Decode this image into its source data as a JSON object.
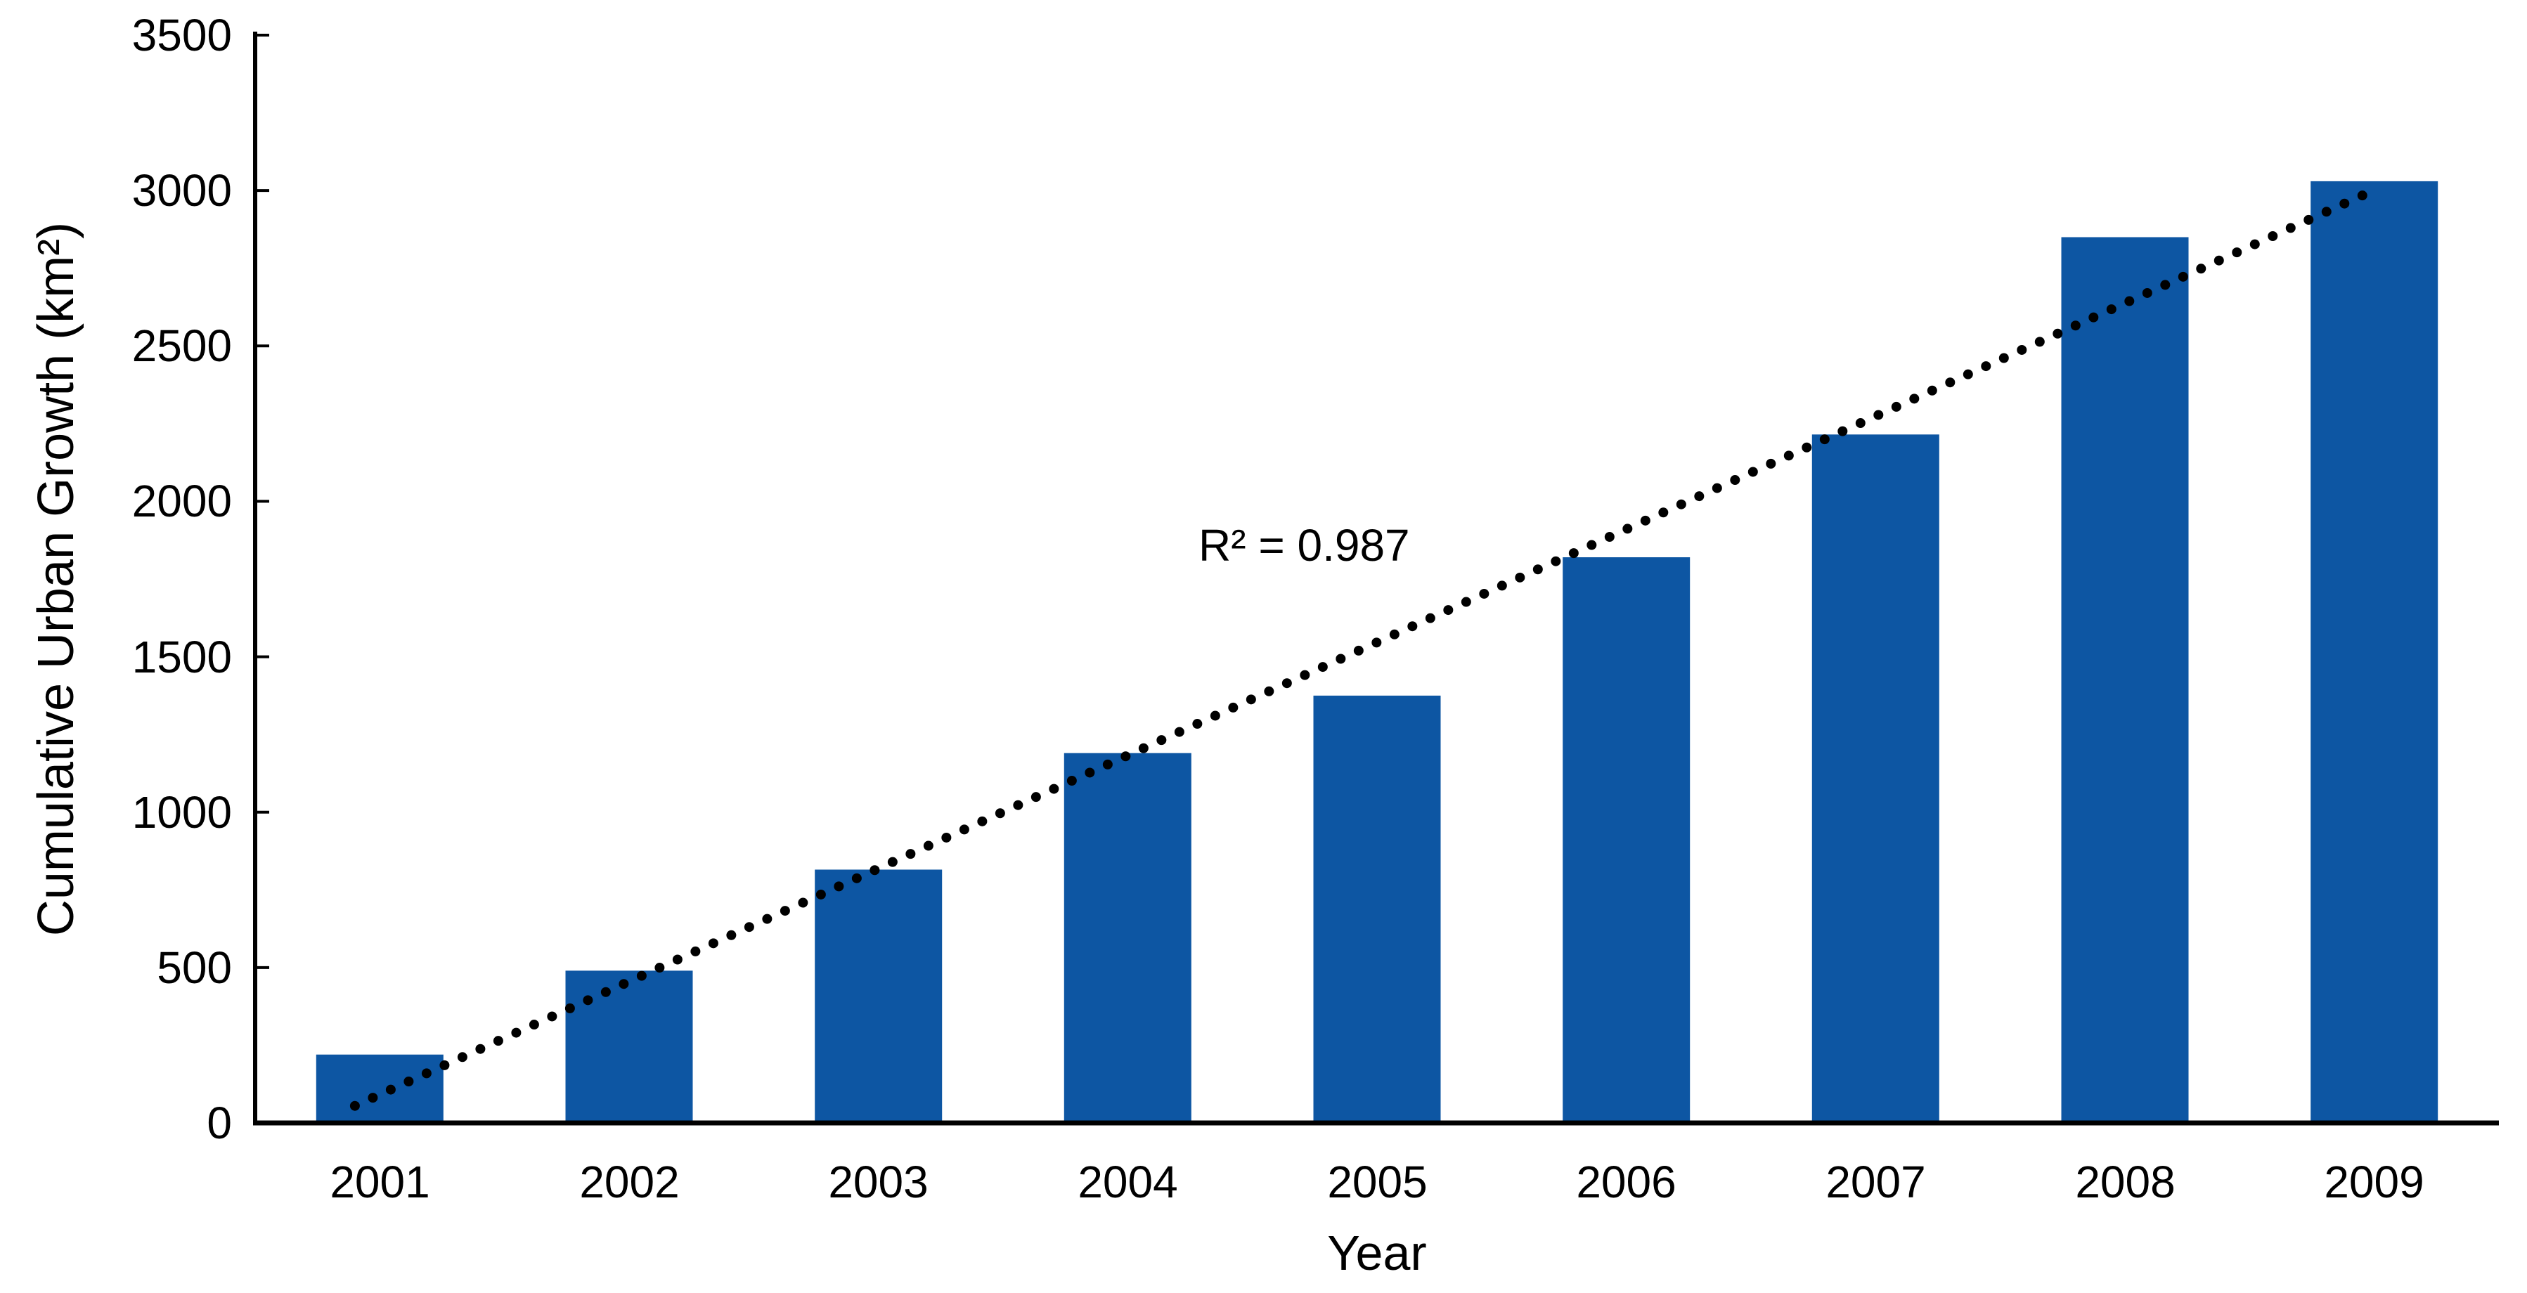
{
  "chart_data": {
    "type": "bar",
    "title": "",
    "categories": [
      "2001",
      "2002",
      "2003",
      "2004",
      "2005",
      "2006",
      "2007",
      "2008",
      "2009"
    ],
    "values": [
      220,
      490,
      815,
      1190,
      1375,
      1820,
      2215,
      2850,
      3030
    ],
    "xlabel": "Year",
    "ylabel": "Cumulative Urban Growth (km²)",
    "ylim": [
      0,
      3500
    ],
    "yticks": [
      0,
      500,
      1000,
      1500,
      2000,
      2500,
      3000,
      3500
    ],
    "grid": false,
    "legend": false,
    "background_color": "#ffffff",
    "bar_color": "#0D56A3",
    "axis_color": "#000000",
    "trendline": {
      "type": "linear",
      "style": "dotted",
      "color": "#000000",
      "label": "R² = 0.987",
      "start": {
        "cat": 0.4,
        "value": 55
      },
      "end": {
        "cat": 8.51,
        "value": 3005
      }
    }
  }
}
